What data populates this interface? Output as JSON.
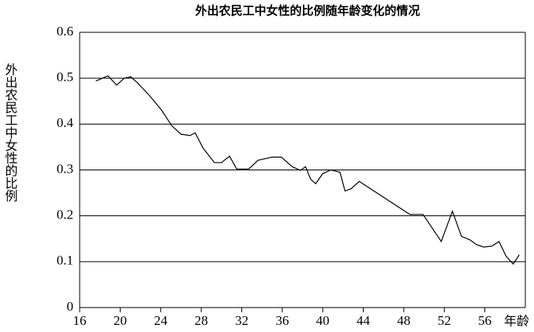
{
  "chart_data": {
    "type": "line",
    "title": "外出农民工中女性的比例随年龄变化的情况",
    "ylabel": "外出农民工中女性的比例",
    "xlabel": "年龄",
    "x": [
      17.6,
      18.8,
      19.65,
      20.4,
      21.05,
      21.7,
      22.9,
      24.1,
      25.1,
      26.0,
      26.9,
      27.4,
      28.2,
      29.3,
      30.0,
      30.8,
      31.5,
      32.7,
      33.6,
      35.0,
      35.9,
      37.0,
      37.8,
      38.3,
      38.8,
      39.3,
      40.0,
      40.8,
      41.7,
      42.2,
      42.8,
      43.6,
      48.6,
      49.9,
      51.7,
      52.8,
      53.7,
      54.5,
      55.2,
      55.9,
      56.7,
      57.4,
      58.1,
      58.8,
      59.4
    ],
    "series": [
      {
        "color": "#000000",
        "values": [
          0.494,
          0.505,
          0.485,
          0.5,
          0.503,
          0.49,
          0.462,
          0.43,
          0.396,
          0.378,
          0.375,
          0.381,
          0.347,
          0.316,
          0.316,
          0.33,
          0.302,
          0.302,
          0.321,
          0.328,
          0.328,
          0.307,
          0.299,
          0.307,
          0.28,
          0.27,
          0.292,
          0.3,
          0.295,
          0.254,
          0.259,
          0.275,
          0.203,
          0.203,
          0.144,
          0.21,
          0.155,
          0.148,
          0.137,
          0.132,
          0.134,
          0.144,
          0.112,
          0.095,
          0.115
        ]
      }
    ],
    "xlim": [
      16,
      60
    ],
    "xticks": [
      16,
      20,
      24,
      28,
      32,
      36,
      40,
      44,
      48,
      52,
      56
    ],
    "ylim": [
      0,
      0.6
    ],
    "yticks": [
      0,
      0.1,
      0.2,
      0.3,
      0.4,
      0.5,
      0.6
    ],
    "grid": true
  }
}
